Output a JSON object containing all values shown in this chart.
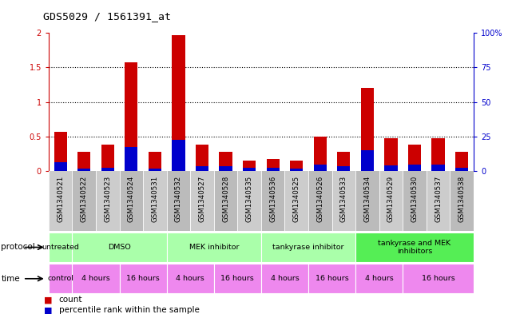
{
  "title": "GDS5029 / 1561391_at",
  "samples": [
    "GSM1340521",
    "GSM1340522",
    "GSM1340523",
    "GSM1340524",
    "GSM1340531",
    "GSM1340532",
    "GSM1340527",
    "GSM1340528",
    "GSM1340535",
    "GSM1340536",
    "GSM1340525",
    "GSM1340526",
    "GSM1340533",
    "GSM1340534",
    "GSM1340529",
    "GSM1340530",
    "GSM1340537",
    "GSM1340538"
  ],
  "red_values": [
    0.57,
    0.28,
    0.38,
    1.58,
    0.28,
    1.97,
    0.38,
    0.28,
    0.15,
    0.17,
    0.15,
    0.5,
    0.28,
    1.2,
    0.48,
    0.38,
    0.48,
    0.28
  ],
  "blue_values": [
    0.13,
    0.04,
    0.05,
    0.35,
    0.04,
    0.45,
    0.07,
    0.07,
    0.05,
    0.05,
    0.04,
    0.1,
    0.07,
    0.3,
    0.08,
    0.09,
    0.1,
    0.05
  ],
  "ylim_max": 2.0,
  "yticks_left": [
    0,
    0.5,
    1.0,
    1.5,
    2.0
  ],
  "ytick_labels_left": [
    "0",
    "0.5",
    "1",
    "1.5",
    "2"
  ],
  "yticks_right": [
    0,
    25,
    50,
    75,
    100
  ],
  "ytick_labels_right": [
    "0",
    "25",
    "50",
    "75",
    "100%"
  ],
  "left_tick_color": "#cc0000",
  "right_tick_color": "#0000cc",
  "bar_color_red": "#cc0000",
  "bar_color_blue": "#0000cc",
  "bg_color": "#ffffff",
  "sample_bg_color": "#cccccc",
  "protocol_data": [
    {
      "label": "untreated",
      "start": 0,
      "end": 1,
      "color": "#aaffaa"
    },
    {
      "label": "DMSO",
      "start": 1,
      "end": 5,
      "color": "#aaffaa"
    },
    {
      "label": "MEK inhibitor",
      "start": 5,
      "end": 9,
      "color": "#aaffaa"
    },
    {
      "label": "tankyrase inhibitor",
      "start": 9,
      "end": 13,
      "color": "#aaffaa"
    },
    {
      "label": "tankyrase and MEK\ninhibitors",
      "start": 13,
      "end": 18,
      "color": "#55ee55"
    }
  ],
  "time_data": [
    {
      "label": "control",
      "start": 0,
      "end": 1
    },
    {
      "label": "4 hours",
      "start": 1,
      "end": 3
    },
    {
      "label": "16 hours",
      "start": 3,
      "end": 5
    },
    {
      "label": "4 hours",
      "start": 5,
      "end": 7
    },
    {
      "label": "16 hours",
      "start": 7,
      "end": 9
    },
    {
      "label": "4 hours",
      "start": 9,
      "end": 11
    },
    {
      "label": "16 hours",
      "start": 11,
      "end": 13
    },
    {
      "label": "4 hours",
      "start": 13,
      "end": 15
    },
    {
      "label": "16 hours",
      "start": 15,
      "end": 18
    }
  ],
  "time_color": "#ee88ee",
  "grid_dotted_vals": [
    0.5,
    1.0,
    1.5
  ]
}
